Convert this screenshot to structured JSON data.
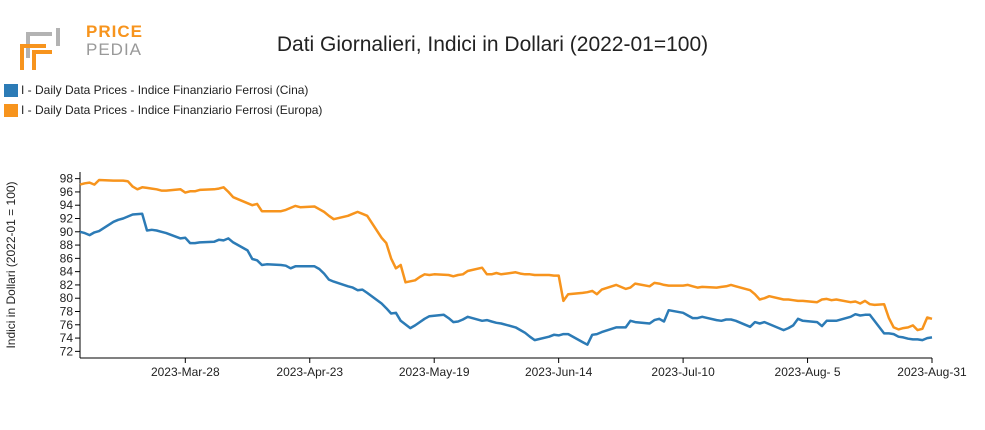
{
  "logo": {
    "line1": "PRICE",
    "line2": "PEDIA"
  },
  "colors": {
    "cina": "#2c7bb6",
    "europa": "#f7941d",
    "logo_orange": "#f7941d",
    "logo_gray": "#b3b3b3"
  },
  "chart_data": {
    "type": "line",
    "title": "Dati Giornalieri, Indici in Dollari (2022-01=100)",
    "ylabel": "Indici in Dollari (2022-01 = 100)",
    "xlabel": "",
    "ylim": [
      71,
      99
    ],
    "yticks": [
      72,
      74,
      76,
      78,
      80,
      82,
      84,
      86,
      88,
      90,
      92,
      94,
      96,
      98
    ],
    "x_range": [
      "2023-03-06",
      "2023-08-31"
    ],
    "x_ticks": [
      {
        "date": "2023-03-28",
        "label": "2023-Mar-28"
      },
      {
        "date": "2023-04-23",
        "label": "2023-Apr-23"
      },
      {
        "date": "2023-05-19",
        "label": "2023-May-19"
      },
      {
        "date": "2023-06-14",
        "label": "2023-Jun-14"
      },
      {
        "date": "2023-07-10",
        "label": "2023-Jul-10"
      },
      {
        "date": "2023-08-05",
        "label": "2023-Aug- 5"
      },
      {
        "date": "2023-08-31",
        "label": "2023-Aug-31"
      }
    ],
    "legend_position": "top-left",
    "grid": false,
    "series": [
      {
        "name": "I - Daily Data Prices - Indice Finanziario Ferrosi (Cina)",
        "color": "#2c7bb6",
        "points": [
          [
            "2023-03-06",
            90.0
          ],
          [
            "2023-03-07",
            89.8
          ],
          [
            "2023-03-08",
            89.5
          ],
          [
            "2023-03-09",
            89.9
          ],
          [
            "2023-03-10",
            90.1
          ],
          [
            "2023-03-13",
            91.5
          ],
          [
            "2023-03-14",
            91.8
          ],
          [
            "2023-03-15",
            92.0
          ],
          [
            "2023-03-16",
            92.3
          ],
          [
            "2023-03-17",
            92.6
          ],
          [
            "2023-03-19",
            92.7
          ],
          [
            "2023-03-20",
            90.2
          ],
          [
            "2023-03-21",
            90.3
          ],
          [
            "2023-03-22",
            90.2
          ],
          [
            "2023-03-23",
            90.0
          ],
          [
            "2023-03-24",
            89.8
          ],
          [
            "2023-03-27",
            89.0
          ],
          [
            "2023-03-28",
            89.1
          ],
          [
            "2023-03-29",
            88.3
          ],
          [
            "2023-03-30",
            88.3
          ],
          [
            "2023-03-31",
            88.4
          ],
          [
            "2023-04-03",
            88.5
          ],
          [
            "2023-04-04",
            88.8
          ],
          [
            "2023-04-05",
            88.7
          ],
          [
            "2023-04-06",
            89.0
          ],
          [
            "2023-04-07",
            88.4
          ],
          [
            "2023-04-10",
            87.2
          ],
          [
            "2023-04-11",
            85.9
          ],
          [
            "2023-04-12",
            85.7
          ],
          [
            "2023-04-13",
            85.0
          ],
          [
            "2023-04-14",
            85.1
          ],
          [
            "2023-04-17",
            85.0
          ],
          [
            "2023-04-18",
            84.9
          ],
          [
            "2023-04-19",
            84.5
          ],
          [
            "2023-04-20",
            84.8
          ],
          [
            "2023-04-21",
            84.8
          ],
          [
            "2023-04-24",
            84.8
          ],
          [
            "2023-04-25",
            84.4
          ],
          [
            "2023-04-26",
            83.7
          ],
          [
            "2023-04-27",
            82.8
          ],
          [
            "2023-04-28",
            82.5
          ],
          [
            "2023-05-01",
            81.8
          ],
          [
            "2023-05-02",
            81.6
          ],
          [
            "2023-05-03",
            81.2
          ],
          [
            "2023-05-04",
            81.3
          ],
          [
            "2023-05-05",
            80.8
          ],
          [
            "2023-05-08",
            79.2
          ],
          [
            "2023-05-09",
            78.5
          ],
          [
            "2023-05-10",
            77.7
          ],
          [
            "2023-05-11",
            77.8
          ],
          [
            "2023-05-12",
            76.6
          ],
          [
            "2023-05-14",
            75.5
          ],
          [
            "2023-05-15",
            75.9
          ],
          [
            "2023-05-16",
            76.4
          ],
          [
            "2023-05-17",
            76.9
          ],
          [
            "2023-05-18",
            77.3
          ],
          [
            "2023-05-21",
            77.5
          ],
          [
            "2023-05-22",
            77.0
          ],
          [
            "2023-05-23",
            76.4
          ],
          [
            "2023-05-24",
            76.5
          ],
          [
            "2023-05-25",
            76.8
          ],
          [
            "2023-05-26",
            77.2
          ],
          [
            "2023-05-29",
            76.6
          ],
          [
            "2023-05-30",
            76.7
          ],
          [
            "2023-05-31",
            76.5
          ],
          [
            "2023-06-01",
            76.3
          ],
          [
            "2023-06-02",
            76.2
          ],
          [
            "2023-06-05",
            75.6
          ],
          [
            "2023-06-06",
            75.2
          ],
          [
            "2023-06-07",
            74.8
          ],
          [
            "2023-06-08",
            74.2
          ],
          [
            "2023-06-09",
            73.7
          ],
          [
            "2023-06-12",
            74.2
          ],
          [
            "2023-06-13",
            74.5
          ],
          [
            "2023-06-14",
            74.4
          ],
          [
            "2023-06-15",
            74.6
          ],
          [
            "2023-06-16",
            74.6
          ],
          [
            "2023-06-19",
            73.4
          ],
          [
            "2023-06-20",
            73.0
          ],
          [
            "2023-06-21",
            74.5
          ],
          [
            "2023-06-22",
            74.6
          ],
          [
            "2023-06-23",
            74.9
          ],
          [
            "2023-06-26",
            75.6
          ],
          [
            "2023-06-27",
            75.6
          ],
          [
            "2023-06-28",
            75.6
          ],
          [
            "2023-06-29",
            76.6
          ],
          [
            "2023-06-30",
            76.4
          ],
          [
            "2023-07-03",
            76.2
          ],
          [
            "2023-07-04",
            76.7
          ],
          [
            "2023-07-05",
            76.9
          ],
          [
            "2023-07-06",
            76.5
          ],
          [
            "2023-07-07",
            78.2
          ],
          [
            "2023-07-10",
            77.8
          ],
          [
            "2023-07-11",
            77.4
          ],
          [
            "2023-07-12",
            77.0
          ],
          [
            "2023-07-13",
            77.0
          ],
          [
            "2023-07-14",
            77.2
          ],
          [
            "2023-07-17",
            76.7
          ],
          [
            "2023-07-18",
            76.6
          ],
          [
            "2023-07-19",
            76.8
          ],
          [
            "2023-07-20",
            76.8
          ],
          [
            "2023-07-21",
            76.6
          ],
          [
            "2023-07-24",
            75.7
          ],
          [
            "2023-07-25",
            76.4
          ],
          [
            "2023-07-26",
            76.2
          ],
          [
            "2023-07-27",
            76.4
          ],
          [
            "2023-07-28",
            76.1
          ],
          [
            "2023-07-31",
            75.2
          ],
          [
            "2023-08-01",
            75.5
          ],
          [
            "2023-08-02",
            75.9
          ],
          [
            "2023-08-03",
            76.9
          ],
          [
            "2023-08-04",
            76.6
          ],
          [
            "2023-08-07",
            76.4
          ],
          [
            "2023-08-08",
            75.8
          ],
          [
            "2023-08-09",
            76.6
          ],
          [
            "2023-08-10",
            76.6
          ],
          [
            "2023-08-11",
            76.6
          ],
          [
            "2023-08-14",
            77.2
          ],
          [
            "2023-08-15",
            77.6
          ],
          [
            "2023-08-16",
            77.4
          ],
          [
            "2023-08-17",
            77.5
          ],
          [
            "2023-08-18",
            77.5
          ],
          [
            "2023-08-21",
            74.7
          ],
          [
            "2023-08-22",
            74.7
          ],
          [
            "2023-08-23",
            74.6
          ],
          [
            "2023-08-24",
            74.2
          ],
          [
            "2023-08-25",
            74.1
          ],
          [
            "2023-08-26",
            73.9
          ],
          [
            "2023-08-27",
            73.8
          ],
          [
            "2023-08-28",
            73.8
          ],
          [
            "2023-08-29",
            73.7
          ],
          [
            "2023-08-30",
            74.0
          ],
          [
            "2023-08-31",
            74.1
          ]
        ]
      },
      {
        "name": "I - Daily Data Prices - Indice Finanziario Ferrosi (Europa)",
        "color": "#f7941d",
        "points": [
          [
            "2023-03-06",
            97.1
          ],
          [
            "2023-03-07",
            97.3
          ],
          [
            "2023-03-08",
            97.4
          ],
          [
            "2023-03-09",
            97.1
          ],
          [
            "2023-03-10",
            97.8
          ],
          [
            "2023-03-13",
            97.7
          ],
          [
            "2023-03-14",
            97.7
          ],
          [
            "2023-03-15",
            97.7
          ],
          [
            "2023-03-16",
            97.6
          ],
          [
            "2023-03-17",
            96.8
          ],
          [
            "2023-03-18",
            96.4
          ],
          [
            "2023-03-19",
            96.7
          ],
          [
            "2023-03-20",
            96.6
          ],
          [
            "2023-03-21",
            96.5
          ],
          [
            "2023-03-22",
            96.4
          ],
          [
            "2023-03-23",
            96.2
          ],
          [
            "2023-03-24",
            96.2
          ],
          [
            "2023-03-27",
            96.4
          ],
          [
            "2023-03-28",
            95.9
          ],
          [
            "2023-03-29",
            96.1
          ],
          [
            "2023-03-30",
            96.1
          ],
          [
            "2023-03-31",
            96.3
          ],
          [
            "2023-04-03",
            96.4
          ],
          [
            "2023-04-04",
            96.5
          ],
          [
            "2023-04-05",
            96.7
          ],
          [
            "2023-04-06",
            96.0
          ],
          [
            "2023-04-07",
            95.2
          ],
          [
            "2023-04-10",
            94.3
          ],
          [
            "2023-04-11",
            94.0
          ],
          [
            "2023-04-12",
            94.2
          ],
          [
            "2023-04-13",
            93.1
          ],
          [
            "2023-04-14",
            93.1
          ],
          [
            "2023-04-17",
            93.1
          ],
          [
            "2023-04-18",
            93.3
          ],
          [
            "2023-04-19",
            93.6
          ],
          [
            "2023-04-20",
            93.9
          ],
          [
            "2023-04-21",
            93.7
          ],
          [
            "2023-04-24",
            93.8
          ],
          [
            "2023-04-25",
            93.4
          ],
          [
            "2023-04-26",
            93.0
          ],
          [
            "2023-04-27",
            92.4
          ],
          [
            "2023-04-28",
            91.9
          ],
          [
            "2023-05-01",
            92.4
          ],
          [
            "2023-05-02",
            92.7
          ],
          [
            "2023-05-03",
            93.0
          ],
          [
            "2023-05-04",
            92.7
          ],
          [
            "2023-05-05",
            92.4
          ],
          [
            "2023-05-08",
            89.1
          ],
          [
            "2023-05-09",
            88.3
          ],
          [
            "2023-05-10",
            86.0
          ],
          [
            "2023-05-11",
            84.5
          ],
          [
            "2023-05-12",
            85.0
          ],
          [
            "2023-05-13",
            82.4
          ],
          [
            "2023-05-15",
            82.7
          ],
          [
            "2023-05-16",
            83.2
          ],
          [
            "2023-05-17",
            83.6
          ],
          [
            "2023-05-18",
            83.5
          ],
          [
            "2023-05-19",
            83.6
          ],
          [
            "2023-05-22",
            83.5
          ],
          [
            "2023-05-23",
            83.3
          ],
          [
            "2023-05-24",
            83.5
          ],
          [
            "2023-05-25",
            83.6
          ],
          [
            "2023-05-26",
            84.1
          ],
          [
            "2023-05-29",
            84.6
          ],
          [
            "2023-05-30",
            83.6
          ],
          [
            "2023-05-31",
            83.6
          ],
          [
            "2023-06-01",
            83.8
          ],
          [
            "2023-06-02",
            83.6
          ],
          [
            "2023-06-05",
            83.9
          ],
          [
            "2023-06-06",
            83.7
          ],
          [
            "2023-06-07",
            83.6
          ],
          [
            "2023-06-08",
            83.6
          ],
          [
            "2023-06-09",
            83.5
          ],
          [
            "2023-06-12",
            83.5
          ],
          [
            "2023-06-13",
            83.4
          ],
          [
            "2023-06-14",
            83.4
          ],
          [
            "2023-06-15",
            79.6
          ],
          [
            "2023-06-16",
            80.6
          ],
          [
            "2023-06-19",
            80.8
          ],
          [
            "2023-06-20",
            80.9
          ],
          [
            "2023-06-21",
            81.1
          ],
          [
            "2023-06-22",
            80.6
          ],
          [
            "2023-06-23",
            81.3
          ],
          [
            "2023-06-26",
            82.0
          ],
          [
            "2023-06-27",
            81.7
          ],
          [
            "2023-06-28",
            81.4
          ],
          [
            "2023-06-29",
            81.6
          ],
          [
            "2023-06-30",
            82.2
          ],
          [
            "2023-07-03",
            81.8
          ],
          [
            "2023-07-04",
            82.3
          ],
          [
            "2023-07-05",
            82.2
          ],
          [
            "2023-07-06",
            82.0
          ],
          [
            "2023-07-07",
            81.9
          ],
          [
            "2023-07-10",
            81.9
          ],
          [
            "2023-07-11",
            82.0
          ],
          [
            "2023-07-12",
            81.8
          ],
          [
            "2023-07-13",
            81.6
          ],
          [
            "2023-07-14",
            81.7
          ],
          [
            "2023-07-17",
            81.6
          ],
          [
            "2023-07-18",
            81.7
          ],
          [
            "2023-07-19",
            81.8
          ],
          [
            "2023-07-20",
            82.0
          ],
          [
            "2023-07-21",
            81.8
          ],
          [
            "2023-07-24",
            81.2
          ],
          [
            "2023-07-25",
            80.6
          ],
          [
            "2023-07-26",
            79.8
          ],
          [
            "2023-07-27",
            80.0
          ],
          [
            "2023-07-28",
            80.3
          ],
          [
            "2023-07-31",
            79.8
          ],
          [
            "2023-08-01",
            79.8
          ],
          [
            "2023-08-02",
            79.7
          ],
          [
            "2023-08-03",
            79.6
          ],
          [
            "2023-08-04",
            79.6
          ],
          [
            "2023-08-07",
            79.4
          ],
          [
            "2023-08-08",
            79.8
          ],
          [
            "2023-08-09",
            79.9
          ],
          [
            "2023-08-10",
            79.7
          ],
          [
            "2023-08-11",
            79.8
          ],
          [
            "2023-08-14",
            79.4
          ],
          [
            "2023-08-15",
            79.5
          ],
          [
            "2023-08-16",
            79.2
          ],
          [
            "2023-08-17",
            79.6
          ],
          [
            "2023-08-18",
            79.1
          ],
          [
            "2023-08-19",
            79.0
          ],
          [
            "2023-08-21",
            79.1
          ],
          [
            "2023-08-22",
            77.0
          ],
          [
            "2023-08-23",
            75.6
          ],
          [
            "2023-08-24",
            75.3
          ],
          [
            "2023-08-25",
            75.5
          ],
          [
            "2023-08-26",
            75.6
          ],
          [
            "2023-08-27",
            75.9
          ],
          [
            "2023-08-28",
            75.2
          ],
          [
            "2023-08-29",
            75.4
          ],
          [
            "2023-08-30",
            77.1
          ],
          [
            "2023-08-31",
            76.9
          ]
        ]
      }
    ]
  }
}
